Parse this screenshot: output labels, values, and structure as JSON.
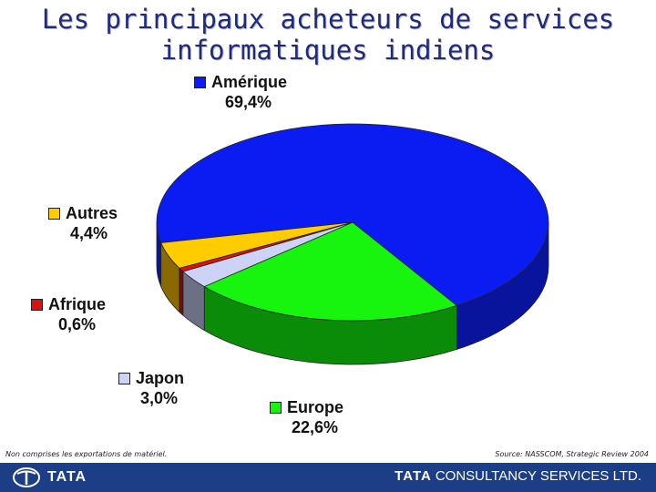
{
  "title": {
    "line1": "Les principaux acheteurs de services",
    "line2": "informatiques indiens"
  },
  "chart_data": {
    "type": "pie",
    "title": "Les principaux acheteurs de services informatiques indiens",
    "slices": [
      {
        "name": "Amérique",
        "value": 69.4,
        "label": "69,4%",
        "color": "#0a1cf2",
        "side": "#08149c"
      },
      {
        "name": "Europe",
        "value": 22.6,
        "label": "22,6%",
        "color": "#17f50f",
        "side": "#0b8c08"
      },
      {
        "name": "Japon",
        "value": 3.0,
        "label": "3,0%",
        "color": "#cdd3f7",
        "side": "#6c6f85"
      },
      {
        "name": "Afrique",
        "value": 0.6,
        "label": "0,6%",
        "color": "#e01010",
        "side": "#7a0808"
      },
      {
        "name": "Autres",
        "value": 4.4,
        "label": "4,4%",
        "color": "#ffcc00",
        "side": "#8a6a00"
      }
    ]
  },
  "footnote_left": "Non comprises les exportations de matériel.",
  "footnote_right": "Source: NASSCOM, Strategic Review 2004",
  "footer": {
    "left_brand": "TATA",
    "right_brand_bold": "TATA",
    "right_brand_rest": "CONSULTANCY SERVICES LTD."
  }
}
